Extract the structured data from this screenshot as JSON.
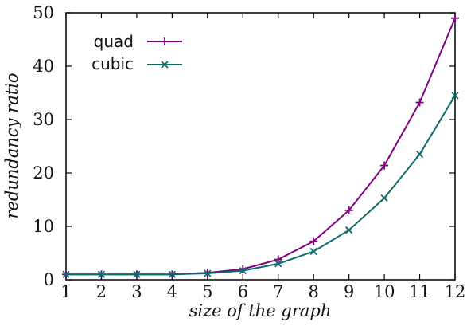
{
  "chart_data": {
    "type": "line",
    "title": "",
    "xlabel": "size of the graph",
    "ylabel": "redundancy ratio",
    "x": [
      1,
      2,
      3,
      4,
      5,
      6,
      7,
      8,
      9,
      10,
      11,
      12
    ],
    "xticks": [
      1,
      2,
      3,
      4,
      5,
      6,
      7,
      8,
      9,
      10,
      11,
      12
    ],
    "yticks": [
      0,
      10,
      20,
      30,
      40,
      50
    ],
    "xlim": [
      1,
      12
    ],
    "ylim": [
      0,
      50
    ],
    "grid": false,
    "legend_position": "top-left",
    "series": [
      {
        "name": "quad",
        "marker": "plus",
        "color": "#800080",
        "values": [
          1.0,
          1.0,
          1.0,
          1.0,
          1.3,
          2.0,
          3.8,
          7.2,
          13.0,
          21.4,
          33.2,
          49.0
        ]
      },
      {
        "name": "cubic",
        "marker": "cross",
        "color": "#0b6b6b",
        "values": [
          1.0,
          1.0,
          1.0,
          1.0,
          1.2,
          1.7,
          3.0,
          5.3,
          9.3,
          15.3,
          23.5,
          34.5
        ]
      }
    ]
  }
}
